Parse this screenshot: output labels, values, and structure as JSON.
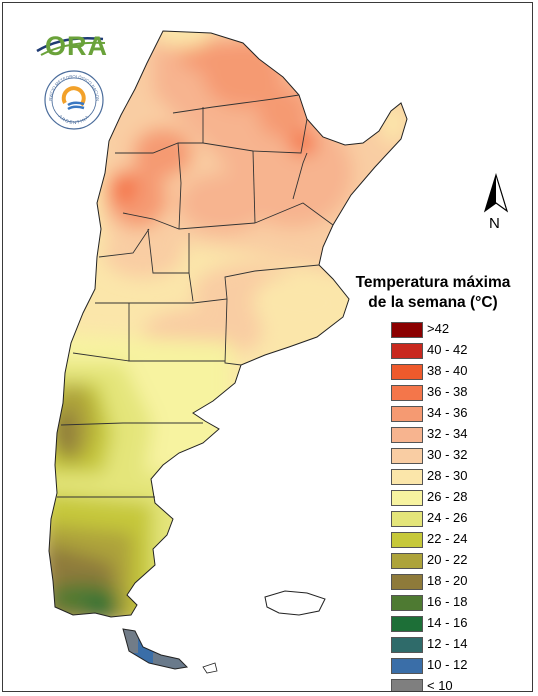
{
  "legend": {
    "title_line1": "Temperatura máxima",
    "title_line2": "de la semana (°C)",
    "items": [
      {
        "label": ">42",
        "color": "#8b0000"
      },
      {
        "label": "40 - 42",
        "color": "#c8281e"
      },
      {
        "label": "38 - 40",
        "color": "#ee5a2c"
      },
      {
        "label": "36 - 38",
        "color": "#f4764a"
      },
      {
        "label": "34 - 36",
        "color": "#f59a72"
      },
      {
        "label": "32 - 34",
        "color": "#f7b48f"
      },
      {
        "label": "30 - 32",
        "color": "#f9cda3"
      },
      {
        "label": "28 - 30",
        "color": "#fbe6aa"
      },
      {
        "label": "26 - 28",
        "color": "#f7f3a0"
      },
      {
        "label": "24 - 26",
        "color": "#e4e57a"
      },
      {
        "label": "22 - 24",
        "color": "#c6c83a"
      },
      {
        "label": "20 - 22",
        "color": "#ada33a"
      },
      {
        "label": "18 - 20",
        "color": "#8e7a3a"
      },
      {
        "label": "16 - 18",
        "color": "#4e7a32"
      },
      {
        "label": "14 - 16",
        "color": "#1d6f37"
      },
      {
        "label": "12 - 14",
        "color": "#2f6b6a"
      },
      {
        "label": "10 - 12",
        "color": "#3a6ea8"
      },
      {
        "label": "< 10",
        "color": "#7f7f7f"
      }
    ]
  },
  "logos": {
    "ora_text": "ORA",
    "seal_text_top": "SERVICIO METEOROLÓGICO NACIONAL",
    "seal_text_bottom": "ARGENTINA"
  },
  "north_arrow": {
    "label": "N"
  }
}
